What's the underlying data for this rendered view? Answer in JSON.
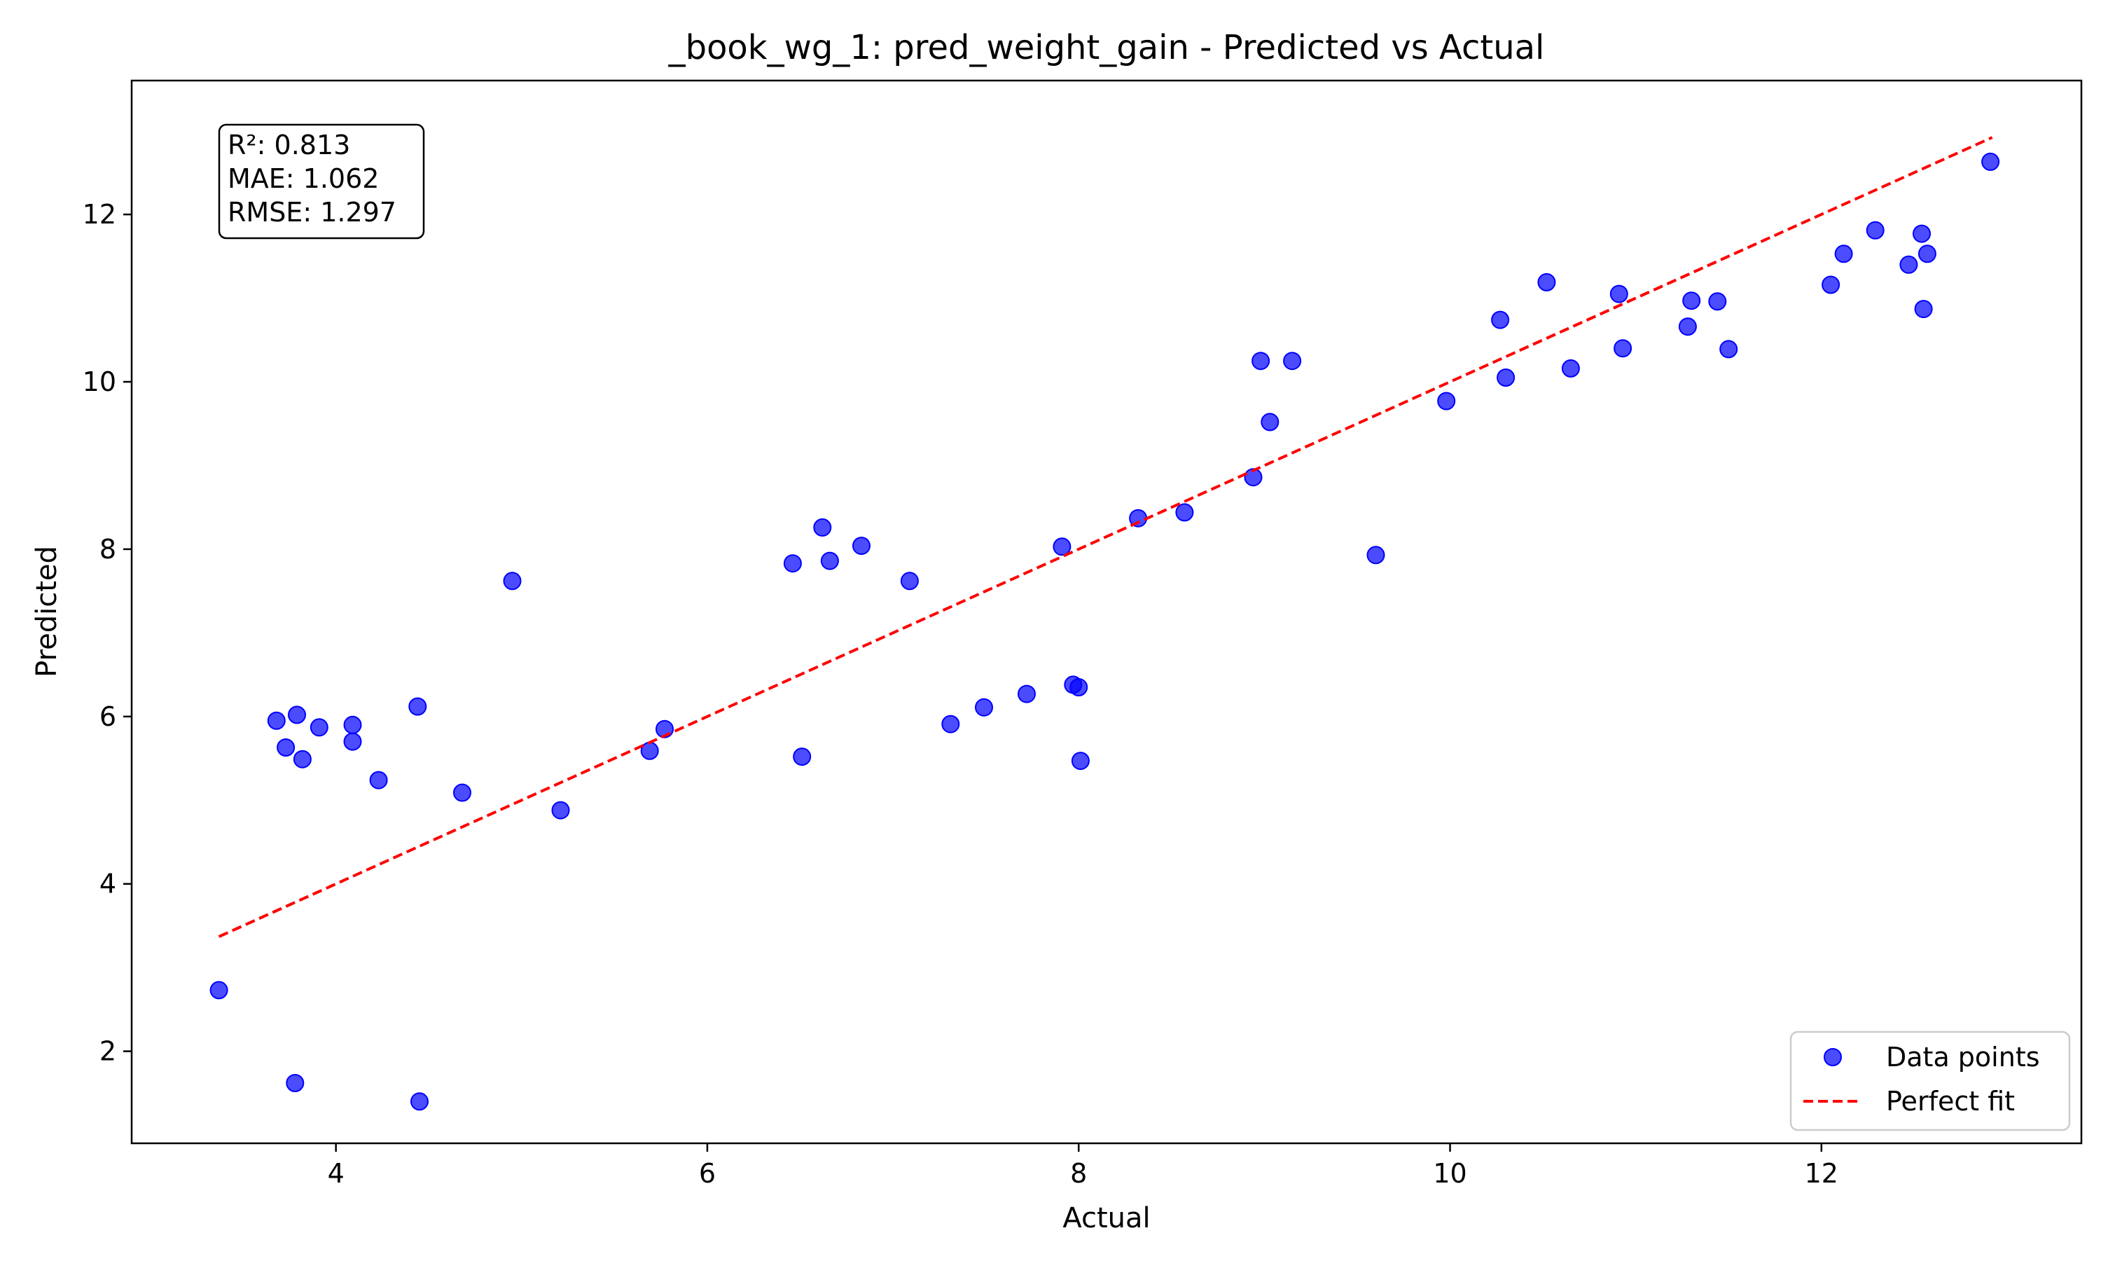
{
  "chart_data": {
    "type": "scatter",
    "title": "_book_wg_1: pred_weight_gain - Predicted vs Actual",
    "xlabel": "Actual",
    "ylabel": "Predicted",
    "xlim": [
      2.9,
      13.4
    ],
    "ylim": [
      0.9,
      13.6
    ],
    "xticks": [
      4,
      6,
      8,
      10,
      12
    ],
    "yticks": [
      2,
      4,
      6,
      8,
      10,
      12
    ],
    "grid": false,
    "legend_position": "bottom-right",
    "stats": {
      "r2": "R²: 0.813",
      "mae": "MAE: 1.062",
      "rmse": "RMSE: 1.297"
    },
    "series": [
      {
        "name": "Data points",
        "type": "scatter",
        "color": "#0000ff",
        "points": [
          [
            3.37,
            2.73
          ],
          [
            3.68,
            5.95
          ],
          [
            3.73,
            5.63
          ],
          [
            3.78,
            1.62
          ],
          [
            3.79,
            6.02
          ],
          [
            3.82,
            5.49
          ],
          [
            3.91,
            5.87
          ],
          [
            4.09,
            5.9
          ],
          [
            4.09,
            5.7
          ],
          [
            4.23,
            5.24
          ],
          [
            4.44,
            6.12
          ],
          [
            4.45,
            1.4
          ],
          [
            4.68,
            5.09
          ],
          [
            4.95,
            7.62
          ],
          [
            5.21,
            4.88
          ],
          [
            5.69,
            5.59
          ],
          [
            5.77,
            5.85
          ],
          [
            6.46,
            7.83
          ],
          [
            6.51,
            5.52
          ],
          [
            6.62,
            8.26
          ],
          [
            6.66,
            7.86
          ],
          [
            6.83,
            8.04
          ],
          [
            7.09,
            7.62
          ],
          [
            7.31,
            5.91
          ],
          [
            7.49,
            6.11
          ],
          [
            7.72,
            6.27
          ],
          [
            7.91,
            8.03
          ],
          [
            7.97,
            6.38
          ],
          [
            8.0,
            6.35
          ],
          [
            8.01,
            5.47
          ],
          [
            8.32,
            8.37
          ],
          [
            8.57,
            8.44
          ],
          [
            8.94,
            8.86
          ],
          [
            8.98,
            10.25
          ],
          [
            9.03,
            9.52
          ],
          [
            9.15,
            10.25
          ],
          [
            9.6,
            7.93
          ],
          [
            9.98,
            9.77
          ],
          [
            10.27,
            10.74
          ],
          [
            10.3,
            10.05
          ],
          [
            10.52,
            11.19
          ],
          [
            10.65,
            10.16
          ],
          [
            10.91,
            11.05
          ],
          [
            10.93,
            10.4
          ],
          [
            11.28,
            10.66
          ],
          [
            11.3,
            10.97
          ],
          [
            11.44,
            10.96
          ],
          [
            11.5,
            10.39
          ],
          [
            12.05,
            11.16
          ],
          [
            12.12,
            11.53
          ],
          [
            12.29,
            11.81
          ],
          [
            12.47,
            11.4
          ],
          [
            12.54,
            11.77
          ],
          [
            12.55,
            10.87
          ],
          [
            12.57,
            11.53
          ],
          [
            12.91,
            12.63
          ]
        ]
      },
      {
        "name": "Perfect fit",
        "type": "line",
        "color": "#ff0000",
        "dashed": true,
        "x": [
          3.37,
          12.92
        ],
        "y": [
          3.37,
          12.92
        ]
      }
    ]
  }
}
